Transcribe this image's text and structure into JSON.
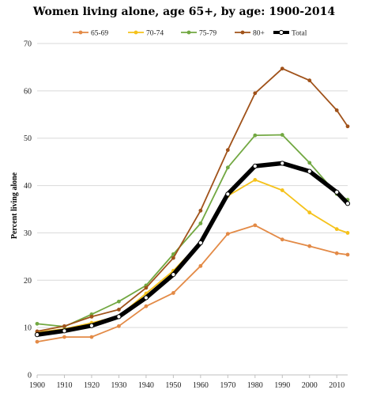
{
  "chart_data": {
    "type": "line",
    "title": "Women living alone, age 65+, by age: 1900-2014",
    "xlabel": "",
    "ylabel": "Percent living alone",
    "ylim": [
      0,
      70
    ],
    "y_ticks": [
      0,
      10,
      20,
      30,
      40,
      50,
      60,
      70
    ],
    "x_ticks": [
      1900,
      1910,
      1920,
      1930,
      1940,
      1950,
      1960,
      1970,
      1980,
      1990,
      2000,
      2010
    ],
    "x": [
      1900,
      1910,
      1920,
      1930,
      1940,
      1950,
      1960,
      1970,
      1980,
      1990,
      2000,
      2010,
      2014
    ],
    "grid": "horizontal",
    "legend": "top",
    "series": [
      {
        "name": "65-69",
        "color": "#e38a46",
        "values": [
          7.0,
          8.0,
          8.0,
          10.3,
          14.5,
          17.3,
          23.0,
          29.8,
          31.6,
          28.6,
          27.2,
          25.7,
          25.4
        ]
      },
      {
        "name": "70-74",
        "color": "#f5c21b",
        "values": [
          9.0,
          9.7,
          11.0,
          12.4,
          17.2,
          22.0,
          28.0,
          37.8,
          41.2,
          39.0,
          34.3,
          30.8,
          30.0
        ]
      },
      {
        "name": "75-79",
        "color": "#72a842",
        "values": [
          10.8,
          10.2,
          12.8,
          15.5,
          18.9,
          25.5,
          32.0,
          43.8,
          50.6,
          50.7,
          44.8,
          38.2,
          37.0
        ]
      },
      {
        "name": "80+",
        "color": "#a0521a",
        "values": [
          9.2,
          10.3,
          12.3,
          13.8,
          18.4,
          24.7,
          34.7,
          47.5,
          59.5,
          64.7,
          62.2,
          55.9,
          52.5
        ]
      },
      {
        "name": "Total",
        "color": "#000000",
        "values": [
          8.5,
          9.3,
          10.4,
          12.3,
          16.3,
          21.2,
          27.9,
          38.2,
          44.1,
          44.7,
          43.0,
          38.6,
          36.2
        ]
      }
    ]
  }
}
